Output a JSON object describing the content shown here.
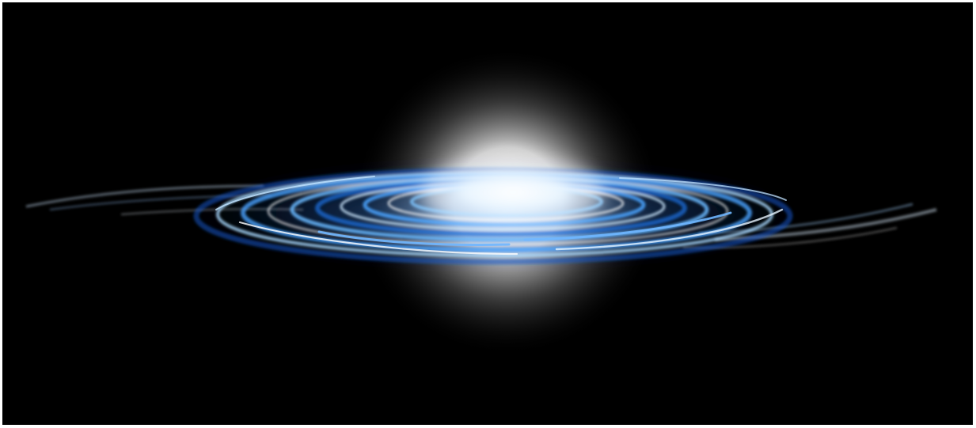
{
  "scene": {
    "subject": "galaxy-render",
    "colors": {
      "background": "#000000",
      "frame": "#ffffff",
      "halo": "#ffffff",
      "core": "#f4fbff",
      "arm_bright": "#a9d8ff",
      "arm_mid": "#4aa3ff",
      "arm_deep": "#1457c8",
      "dust": "#dcefff"
    }
  }
}
